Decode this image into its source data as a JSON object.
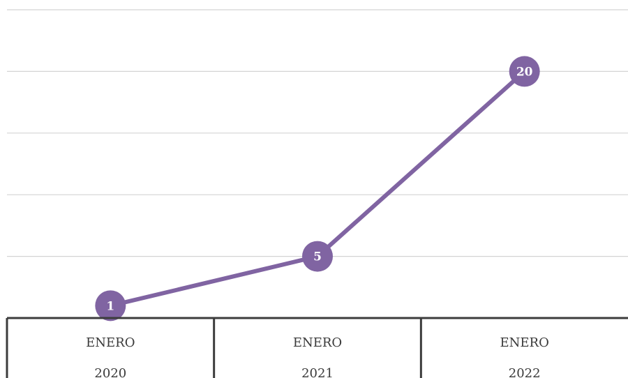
{
  "chart_data": {
    "type": "line",
    "categories": [
      [
        "ENERO",
        "2020"
      ],
      [
        "ENERO",
        "2021"
      ],
      [
        "ENERO",
        "2022"
      ]
    ],
    "series": [
      {
        "values": [
          1,
          5,
          20
        ]
      }
    ],
    "data_labels": [
      "1",
      "5",
      "20"
    ],
    "ylim": [
      0,
      25
    ],
    "grid": true,
    "legend": "none",
    "color": "#8064a2"
  }
}
